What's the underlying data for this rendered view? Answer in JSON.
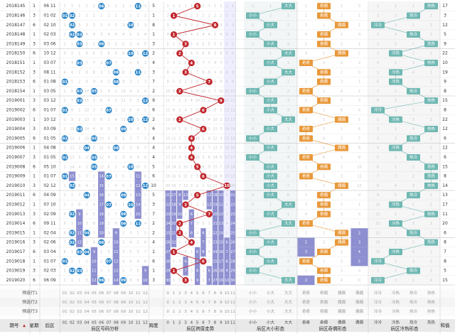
{
  "headers": {
    "period": "期号",
    "sort_arrow": "▲",
    "week": "星期",
    "back_zone": "后区",
    "back_number_analysis": "后区号码分析",
    "span": "跨度",
    "back_span_trend": "后区跨度走势",
    "back_size": "后区大小形态",
    "back_parity": "后区奇偶形态",
    "back_hotcold": "后区冷热形态",
    "sum": "和值"
  },
  "forecast_labels": [
    "预选行1",
    "预选行2",
    "预选行3"
  ],
  "number_labels": [
    "01",
    "02",
    "03",
    "04",
    "05",
    "06",
    "07",
    "08",
    "09",
    "10",
    "11",
    "12"
  ],
  "span_labels": [
    "0",
    "1",
    "2",
    "3",
    "4",
    "5",
    "6",
    "7",
    "8",
    "9",
    "10",
    "11"
  ],
  "size_labels": [
    "小小",
    "小大",
    "大大"
  ],
  "parity_labels": [
    "奇奇",
    "奇偶",
    "偶偶",
    "偶偶"
  ],
  "hotcold_labels": [
    "冷冷",
    "冷热",
    "热冷",
    "热热"
  ],
  "colors": {
    "blue_ball": "#2e86c8",
    "red_ball": "#c0272d",
    "teal": "#6fb7b2",
    "orange": "#e8983a",
    "purple_bar": "#8e8fd0",
    "line": "#c0272d",
    "grid": "#d8d8d8",
    "missing_text": "#c8c8c8",
    "header_bg": "#e9e9e9"
  },
  "chart_data": {
    "type": "table",
    "rows": [
      {
        "period": "2018145",
        "week": "1",
        "back": "06 11",
        "nums": [
          6,
          11
        ],
        "span": 5,
        "size": "大大",
        "parity": "偶奇",
        "hotcold": "热热",
        "sum": "17"
      },
      {
        "period": "2018146",
        "week": "3",
        "back": "01 02",
        "nums": [
          1,
          2
        ],
        "span": 1,
        "size": "小小",
        "parity": "奇偶",
        "hotcold": "热冷",
        "sum": "3"
      },
      {
        "period": "2018147",
        "week": "6",
        "back": "02 10",
        "nums": [
          2,
          10
        ],
        "span": 8,
        "size": "小大",
        "parity": "偶偶",
        "hotcold": "冷冷",
        "sum": "12"
      },
      {
        "period": "2018148",
        "week": "1",
        "back": "02 03",
        "nums": [
          2,
          3
        ],
        "span": 1,
        "size": "小小",
        "parity": "偶奇",
        "hotcold": "热冷",
        "sum": "5"
      },
      {
        "period": "2018149",
        "week": "3",
        "back": "03 06",
        "nums": [
          3,
          6
        ],
        "span": 3,
        "size": "小大",
        "parity": "奇偶",
        "hotcold": "热热",
        "sum": "9"
      },
      {
        "period": "2018150",
        "week": "6",
        "back": "10 12",
        "nums": [
          10,
          12
        ],
        "span": 2,
        "size": "大大",
        "parity": "偶偶",
        "hotcold": "冷热",
        "sum": "22"
      },
      {
        "period": "2018151",
        "week": "1",
        "back": "03 07",
        "nums": [
          3,
          7
        ],
        "span": 4,
        "size": "小大",
        "parity": "奇奇",
        "hotcold": "热热",
        "sum": "10"
      },
      {
        "period": "2018152",
        "week": "3",
        "back": "08 11",
        "nums": [
          8,
          11
        ],
        "span": 3,
        "size": "大大",
        "parity": "偶奇",
        "hotcold": "冷热",
        "sum": "19"
      },
      {
        "period": "2018153",
        "week": "6",
        "back": "01 08",
        "nums": [
          1,
          8
        ],
        "span": 7,
        "size": "小大",
        "parity": "奇偶",
        "hotcold": "冷热",
        "sum": "9"
      },
      {
        "period": "2018154",
        "week": "1",
        "back": "03 05",
        "nums": [
          3,
          5
        ],
        "span": 2,
        "size": "小小",
        "parity": "奇奇",
        "hotcold": "热冷",
        "sum": "8"
      },
      {
        "period": "2019001",
        "week": "3",
        "back": "03 12",
        "nums": [
          3,
          12
        ],
        "span": 9,
        "size": "小大",
        "parity": "奇偶",
        "hotcold": "热热",
        "sum": "15"
      },
      {
        "period": "2019002",
        "week": "6",
        "back": "01 07",
        "nums": [
          1,
          7
        ],
        "span": 6,
        "size": "小大",
        "parity": "奇奇",
        "hotcold": "冷冷",
        "sum": "8"
      },
      {
        "period": "2019003",
        "week": "1",
        "back": "10 12",
        "nums": [
          10,
          12
        ],
        "span": 2,
        "size": "大大",
        "parity": "偶偶",
        "hotcold": "冷热",
        "sum": "22"
      },
      {
        "period": "2019004",
        "week": "3",
        "back": "03 09",
        "nums": [
          3,
          9
        ],
        "span": 6,
        "size": "小大",
        "parity": "奇奇",
        "hotcold": "热热",
        "sum": "12"
      },
      {
        "period": "2019005",
        "week": "6",
        "back": "01 05",
        "nums": [
          1,
          5
        ],
        "span": 4,
        "size": "小小",
        "parity": "奇奇",
        "hotcold": "热冷",
        "sum": "6"
      },
      {
        "period": "2019006",
        "week": "1",
        "back": "04 08",
        "nums": [
          4,
          8
        ],
        "span": 4,
        "size": "小大",
        "parity": "偶偶",
        "hotcold": "冷热",
        "sum": "12"
      },
      {
        "period": "2019007",
        "week": "3",
        "back": "01 05",
        "nums": [
          1,
          5
        ],
        "span": 4,
        "size": "小小",
        "parity": "奇奇",
        "hotcold": "热冷",
        "sum": "6"
      },
      {
        "period": "2019008",
        "week": "6",
        "back": "05 10",
        "nums": [
          5,
          10
        ],
        "span": 5,
        "size": "小大",
        "parity": "奇偶",
        "hotcold": "热热",
        "sum": "15"
      },
      {
        "period": "2019009",
        "week": "1",
        "back": "01 07",
        "nums": [
          1,
          7
        ],
        "span": 6,
        "size": "小大",
        "parity": "奇奇",
        "hotcold": "热热",
        "sum": "8"
      },
      {
        "period": "2019010",
        "week": "3",
        "back": "02 12",
        "nums": [
          2,
          12
        ],
        "span": 10,
        "size": "小大",
        "parity": "偶偶",
        "hotcold": "热热",
        "sum": "14"
      },
      {
        "period": "2019011",
        "week": "6",
        "back": "04 09",
        "nums": [
          4,
          9
        ],
        "span": 5,
        "size": "小大",
        "parity": "偶奇",
        "hotcold": "热冷",
        "sum": "13"
      },
      {
        "period": "2019012",
        "week": "1",
        "back": "07 10",
        "nums": [
          7,
          10
        ],
        "span": 3,
        "size": "大大",
        "parity": "奇偶",
        "hotcold": "冷热",
        "sum": "17"
      },
      {
        "period": "2019013",
        "week": "3",
        "back": "02 09",
        "nums": [
          2,
          9
        ],
        "span": 7,
        "size": "小大",
        "parity": "偶奇",
        "hotcold": "热热",
        "sum": "11"
      },
      {
        "period": "2019014",
        "week": "6",
        "back": "09 11",
        "nums": [
          9,
          11
        ],
        "span": 2,
        "size": "大大",
        "parity": "奇奇",
        "hotcold": "冷热",
        "sum": "20"
      },
      {
        "period": "2019015",
        "week": "1",
        "back": "02 04",
        "nums": [
          2,
          4
        ],
        "span": 2,
        "size": "小小",
        "parity": "偶偶",
        "hotcold": "热冷",
        "sum": "6"
      },
      {
        "period": "2019016",
        "week": "3",
        "back": "02 06",
        "nums": [
          2,
          6
        ],
        "span": 4,
        "size": "小大",
        "parity": "偶偶",
        "hotcold": "热热",
        "sum": "8"
      },
      {
        "period": "2019017",
        "week": "6",
        "back": "03 04",
        "nums": [
          3,
          4
        ],
        "span": 1,
        "size": "小小",
        "parity": "奇偶",
        "hotcold": "冷热",
        "sum": "7"
      },
      {
        "period": "2019018",
        "week": "1",
        "back": "01 07",
        "nums": [
          1,
          7
        ],
        "span": 6,
        "size": "小大",
        "parity": "奇奇",
        "hotcold": "冷冷",
        "sum": "8"
      },
      {
        "period": "2019019",
        "week": "3",
        "back": "02 03",
        "nums": [
          2,
          3
        ],
        "span": 1,
        "size": "小小",
        "parity": "偶奇",
        "hotcold": "热冷",
        "sum": "5"
      },
      {
        "period": "2019020",
        "week": "6",
        "back": "06 09",
        "nums": [
          6,
          9
        ],
        "span": 3,
        "size": "大大",
        "parity": "偶奇",
        "hotcold": "冷冷",
        "sum": "15"
      }
    ]
  }
}
